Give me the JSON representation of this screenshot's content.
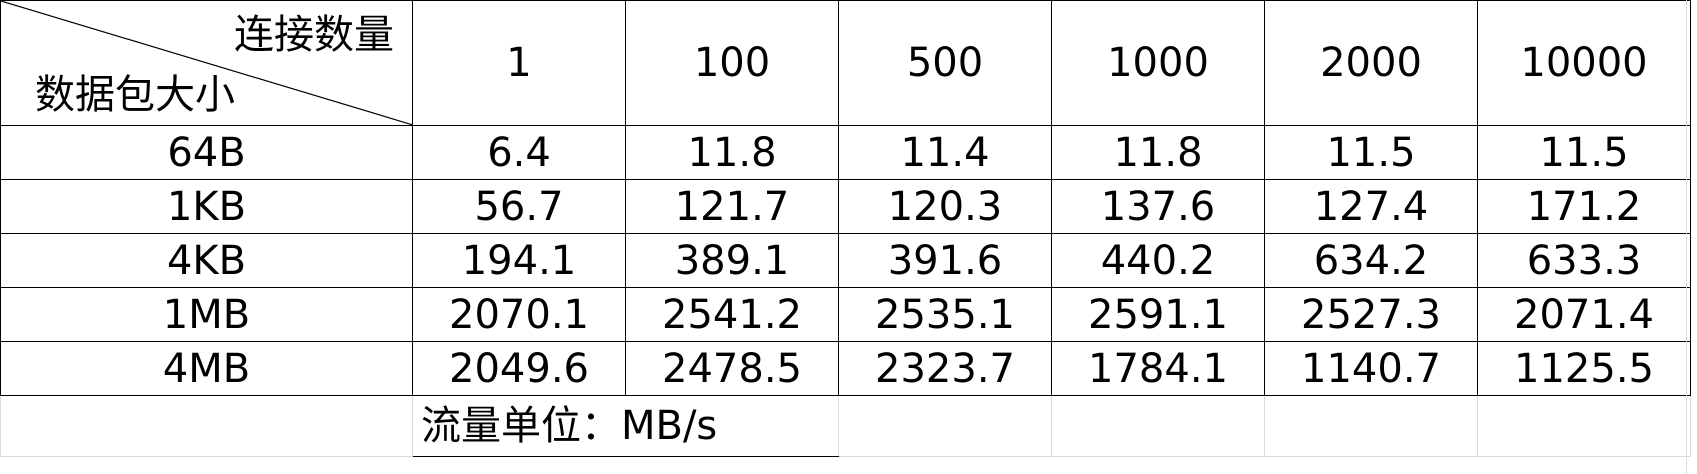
{
  "table": {
    "corner": {
      "top_label": "连接数量",
      "bottom_label": "数据包大小"
    },
    "columns": [
      "1",
      "100",
      "500",
      "1000",
      "2000",
      "10000"
    ],
    "rows": [
      {
        "label": "64B",
        "values": [
          "6.4",
          "11.8",
          "11.4",
          "11.8",
          "11.5",
          "11.5"
        ]
      },
      {
        "label": "1KB",
        "values": [
          "56.7",
          "121.7",
          "120.3",
          "137.6",
          "127.4",
          "171.2"
        ]
      },
      {
        "label": "4KB",
        "values": [
          "194.1",
          "389.1",
          "391.6",
          "440.2",
          "634.2",
          "633.3"
        ]
      },
      {
        "label": "1MB",
        "values": [
          "2070.1",
          "2541.2",
          "2535.1",
          "2591.1",
          "2527.3",
          "2071.4"
        ]
      },
      {
        "label": "4MB",
        "values": [
          "2049.6",
          "2478.5",
          "2323.7",
          "1784.1",
          "1140.7",
          "1125.5"
        ]
      }
    ],
    "footnote": "流量单位：MB/s"
  }
}
